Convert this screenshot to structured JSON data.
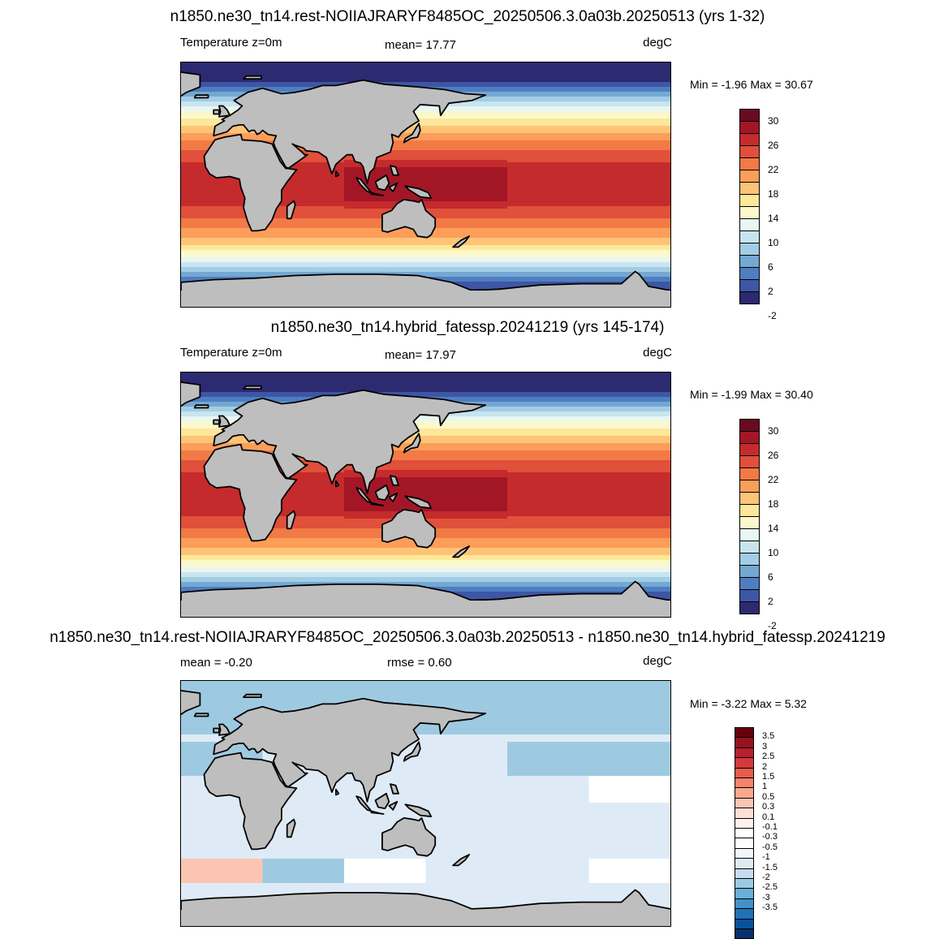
{
  "panels": [
    {
      "title": "n1850.ne30_tn14.rest-NOIIAJRARYF8485OC_20250506.3.0a03b.20250513 (yrs 1-32)",
      "left_label": "Temperature z=0m",
      "center_label": "mean=  17.77",
      "right_label": "degC",
      "minmax": "Min =  -1.96 Max =  30.67",
      "colorbar": {
        "colors": [
          "#2c2a70",
          "#3d56a5",
          "#4f7ec0",
          "#74a8d3",
          "#a2cde4",
          "#c8e5ef",
          "#e9f6f3",
          "#fbf8cc",
          "#fee79a",
          "#fdc477",
          "#fc9e5a",
          "#f27a46",
          "#e0503a",
          "#c52b2c",
          "#a31626",
          "#6a0a22"
        ],
        "labels": [
          "30",
          "26",
          "22",
          "18",
          "14",
          "10",
          "6",
          "2",
          "-2"
        ],
        "label_step": 2
      },
      "field": "mean"
    },
    {
      "title": "n1850.ne30_tn14.hybrid_fatessp.20241219 (yrs 145-174)",
      "left_label": "Temperature z=0m",
      "center_label": "mean=  17.97",
      "right_label": "degC",
      "minmax": "Min =  -1.99 Max =  30.40",
      "colorbar": {
        "colors": [
          "#2c2a70",
          "#3d56a5",
          "#4f7ec0",
          "#74a8d3",
          "#a2cde4",
          "#c8e5ef",
          "#e9f6f3",
          "#fbf8cc",
          "#fee79a",
          "#fdc477",
          "#fc9e5a",
          "#f27a46",
          "#e0503a",
          "#c52b2c",
          "#a31626",
          "#6a0a22"
        ],
        "labels": [
          "30",
          "26",
          "22",
          "18",
          "14",
          "10",
          "6",
          "2",
          "-2"
        ],
        "label_step": 2
      },
      "field": "mean"
    },
    {
      "title": "n1850.ne30_tn14.rest-NOIIAJRARYF8485OC_20250506.3.0a03b.20250513 - n1850.ne30_tn14.hybrid_fatessp.20241219",
      "left_label": "mean =  -0.20",
      "center_label": "rmse =   0.60",
      "right_label": "degC",
      "minmax": "Min =  -3.22 Max =   5.32",
      "colorbar": {
        "colors": [
          "#08306b",
          "#08519c",
          "#2171b5",
          "#4292c6",
          "#6baed6",
          "#9ecae1",
          "#c6dbef",
          "#deebf7",
          "#f0f6fb",
          "#ffffff",
          "#ffffff",
          "#fff2ee",
          "#fde0d6",
          "#fcc5b3",
          "#fba88e",
          "#f5826b",
          "#e85b4d",
          "#d33a3a",
          "#b8202e",
          "#97111f",
          "#67000d"
        ],
        "labels": [
          "3.5",
          "3",
          "2.5",
          "2",
          "1.5",
          "1",
          "0.5",
          "0.3",
          "0.1",
          "-0.1",
          "-0.3",
          "-0.5",
          "-1",
          "-1.5",
          "-2",
          "-2.5",
          "-3",
          "-3.5"
        ],
        "label_step": 1
      },
      "field": "diff"
    }
  ],
  "colors": {
    "land": "#bebebe",
    "coast": "#000000"
  }
}
